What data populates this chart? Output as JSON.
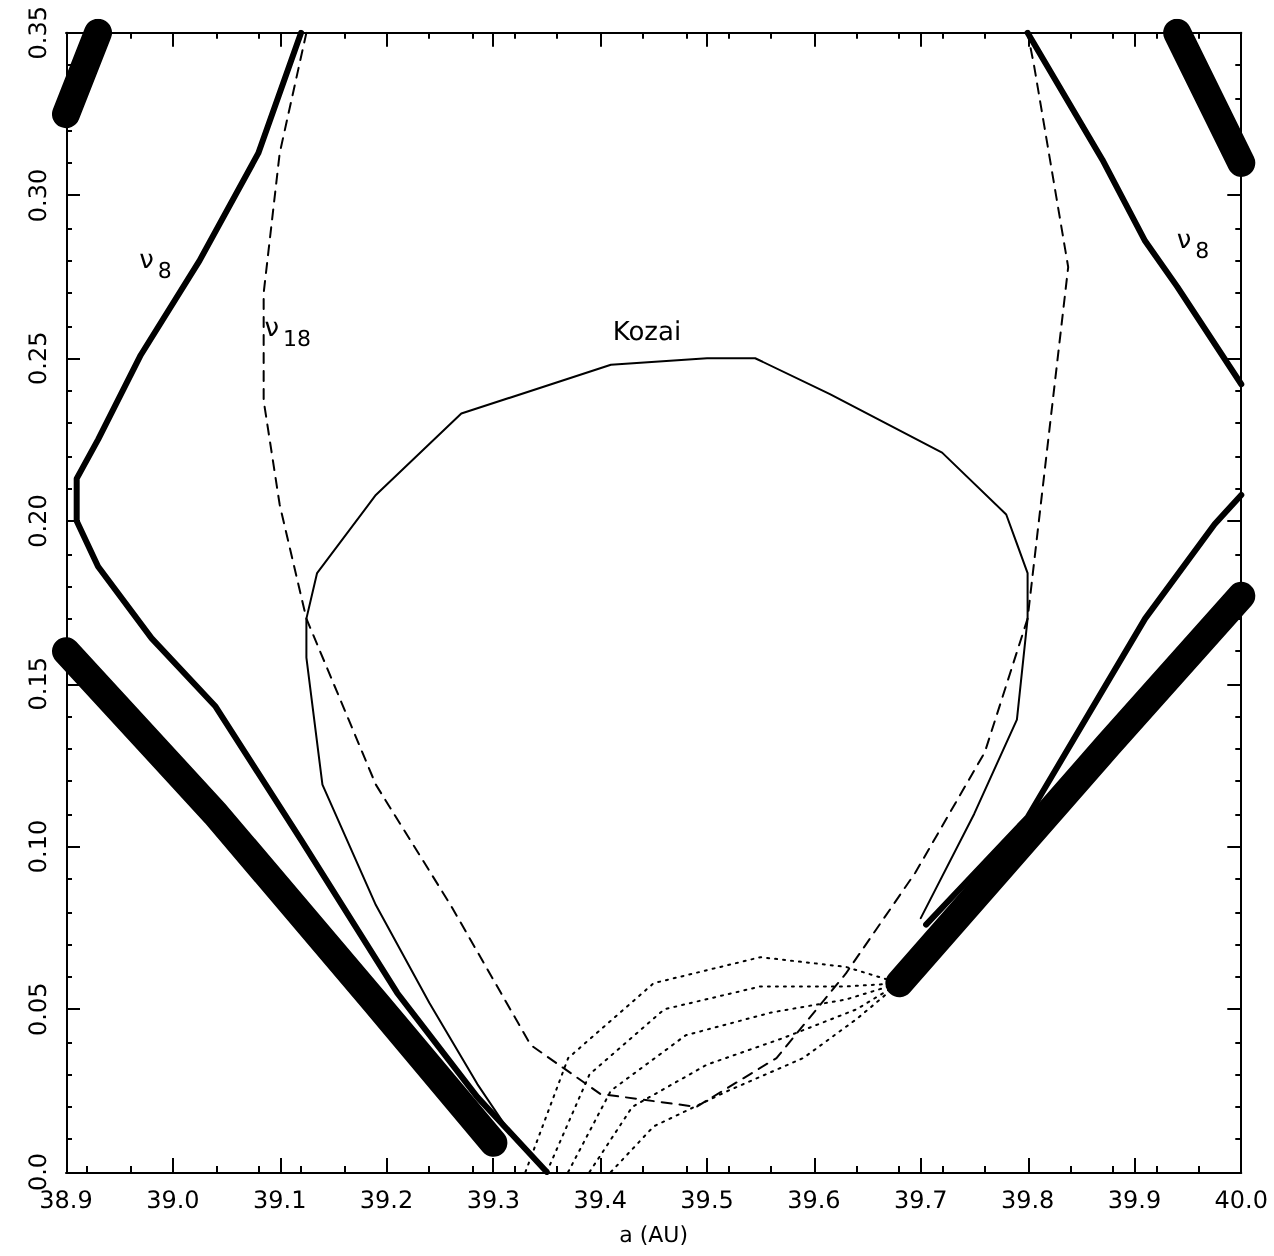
{
  "chart_data": {
    "type": "line",
    "xlabel": "a (AU)",
    "xlim": [
      38.9,
      40.0
    ],
    "ylim": [
      0,
      0.35
    ],
    "xticks": [
      38.9,
      {
        "value": 39.0,
        "label": "39.0"
      },
      39.1,
      39.2,
      39.3,
      39.4,
      39.5,
      39.6,
      39.7,
      39.8,
      39.9,
      {
        "value": 40.0,
        "label": "40.0"
      }
    ],
    "yticks": [
      {
        "value": 0,
        "label": "0.0"
      },
      0.05,
      {
        "value": 0.1,
        "label": "0.10"
      },
      0.15,
      {
        "value": 0.2,
        "label": "0.20"
      },
      0.25,
      {
        "value": 0.3,
        "label": "0.30"
      },
      0.35
    ],
    "grid": false,
    "marker": "none",
    "series": [
      {
        "color": "#000000",
        "line_style": "solid",
        "x": [
          38.9,
          38.93
        ],
        "values": [
          0.325,
          0.35
        ]
      },
      {
        "color": "#000000",
        "line_style": "solid",
        "x": [
          39.94,
          40.0
        ],
        "values": [
          0.35,
          0.31
        ]
      },
      {
        "color": "#000000",
        "line_style": "solid",
        "x": [
          38.9,
          39.04,
          39.19,
          39.3
        ],
        "values": [
          0.16,
          0.11,
          0.052,
          0.009
        ]
      },
      {
        "color": "#000000",
        "line_style": "solid",
        "x": [
          39.68,
          39.875,
          40.0
        ],
        "values": [
          0.058,
          0.131,
          0.177
        ]
      },
      {
        "name": "ν$_{8}$",
        "color": "#000000",
        "line_style": "solid",
        "x": [
          39.12,
          39.08,
          39.025,
          38.97,
          38.93,
          38.91,
          38.91,
          38.93,
          38.98,
          39.04,
          39.12,
          39.21,
          39.285,
          39.35
        ],
        "values": [
          0.35,
          0.313,
          0.28,
          0.251,
          0.225,
          0.213,
          0.2,
          0.186,
          0.164,
          0.143,
          0.102,
          0.055,
          0.023,
          0.0
        ]
      },
      {
        "name": "ν$_{8}$",
        "color": "#000000",
        "line_style": "solid",
        "x": [
          39.8,
          39.87,
          39.91,
          39.94,
          40.0
        ],
        "values": [
          0.35,
          0.311,
          0.286,
          0.272,
          0.242
        ]
      },
      {
        "color": "#000000",
        "line_style": "solid",
        "x": [
          39.705,
          39.8,
          39.91,
          39.975,
          40.0
        ],
        "values": [
          0.076,
          0.109,
          0.17,
          0.199,
          0.208
        ]
      },
      {
        "name": "ν$_{18}$",
        "color": "#000000",
        "line_style": "dashed",
        "x": [
          39.125,
          39.1,
          39.085,
          39.085,
          39.1,
          39.125,
          39.19,
          39.26,
          39.335,
          39.4,
          39.49,
          39.565,
          39.63,
          39.695,
          39.76,
          39.8,
          39.838,
          39.806,
          39.8
        ],
        "values": [
          0.35,
          0.313,
          0.27,
          0.237,
          0.205,
          0.17,
          0.119,
          0.082,
          0.039,
          0.024,
          0.02,
          0.035,
          0.061,
          0.092,
          0.129,
          0.17,
          0.278,
          0.34,
          0.35
        ]
      },
      {
        "name": "Kozai",
        "color": "#000000",
        "line_style": "solid",
        "x": [
          39.32,
          39.285,
          39.24,
          39.19,
          39.14,
          39.125,
          39.125,
          39.135,
          39.19,
          39.27,
          39.41,
          39.5,
          39.545,
          39.615,
          39.72,
          39.78,
          39.8,
          39.8,
          39.79,
          39.75,
          39.7
        ],
        "values": [
          0.01,
          0.027,
          0.052,
          0.082,
          0.119,
          0.158,
          0.17,
          0.184,
          0.208,
          0.233,
          0.248,
          0.25,
          0.25,
          0.239,
          0.221,
          0.202,
          0.184,
          0.17,
          0.139,
          0.11,
          0.078
        ]
      },
      {
        "color": "#000000",
        "line_style": "dotted",
        "x": [
          39.33,
          39.37,
          39.45,
          39.55,
          39.63,
          39.68
        ],
        "values": [
          0.0,
          0.035,
          0.058,
          0.066,
          0.063,
          0.058
        ]
      },
      {
        "color": "#000000",
        "line_style": "dotted",
        "x": [
          39.35,
          39.39,
          39.46,
          39.55,
          39.63,
          39.68
        ],
        "values": [
          0.0,
          0.03,
          0.05,
          0.057,
          0.057,
          0.058
        ]
      },
      {
        "color": "#000000",
        "line_style": "dotted",
        "x": [
          39.37,
          39.41,
          39.48,
          39.56,
          39.63,
          39.68
        ],
        "values": [
          0.0,
          0.025,
          0.042,
          0.049,
          0.053,
          0.058
        ]
      },
      {
        "color": "#000000",
        "line_style": "dotted",
        "x": [
          39.39,
          39.43,
          39.5,
          39.57,
          39.64,
          39.68
        ],
        "values": [
          0.0,
          0.02,
          0.033,
          0.041,
          0.05,
          0.058
        ]
      },
      {
        "color": "#000000",
        "line_style": "dotted",
        "x": [
          39.41,
          39.45,
          39.52,
          39.59,
          39.64,
          39.68
        ],
        "values": [
          0.0,
          0.014,
          0.025,
          0.035,
          0.047,
          0.058
        ]
      }
    ]
  }
}
